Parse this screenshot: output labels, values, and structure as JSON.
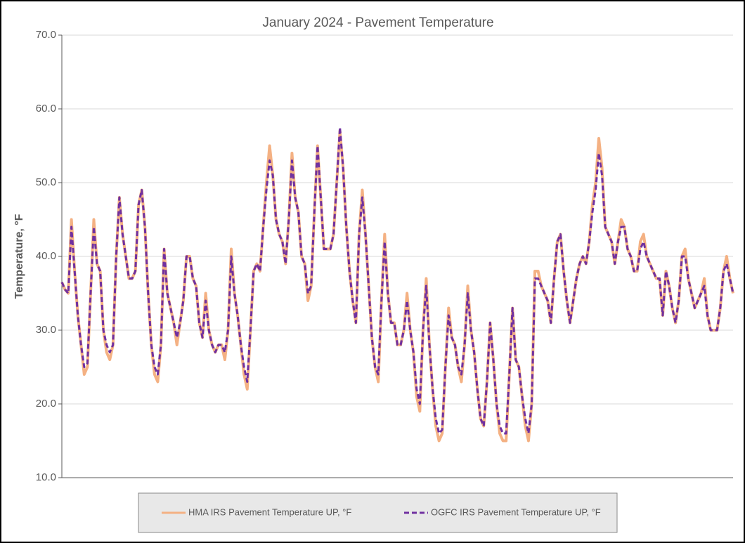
{
  "chart_data": {
    "type": "line",
    "title": "January 2024 - Pavement Temperature",
    "ylabel": "Temperature, °F",
    "ylim": [
      10,
      70
    ],
    "yticks": [
      {
        "value": 10,
        "label": "10.0"
      },
      {
        "value": 20,
        "label": "20.0"
      },
      {
        "value": 30,
        "label": "30.0"
      },
      {
        "value": 40,
        "label": "40.0"
      },
      {
        "value": 50,
        "label": "50.0"
      },
      {
        "value": 60,
        "label": "60.0"
      },
      {
        "value": 70,
        "label": "70.0"
      }
    ],
    "grid": true,
    "legend": "bottom",
    "series": [
      {
        "name": "HMA IRS  Pavement Temperature UP, °F",
        "color": "#f4b183",
        "dash": false,
        "values": [
          36.5,
          35.5,
          35,
          45,
          38,
          32,
          28,
          24,
          25,
          35,
          45,
          39,
          38,
          30,
          27,
          26,
          28,
          40,
          48,
          43,
          40,
          37,
          37,
          38,
          47,
          49,
          44,
          35,
          28,
          24,
          23,
          28,
          41,
          35,
          33,
          31,
          28,
          31,
          34,
          40,
          40,
          37,
          36,
          31,
          29,
          35,
          30,
          28,
          27,
          28,
          28,
          26,
          30,
          41,
          35,
          32,
          28,
          24,
          22,
          30,
          38,
          39,
          38,
          44,
          50,
          55,
          51,
          45,
          43,
          42,
          39,
          45,
          54,
          48,
          46,
          40,
          39,
          34,
          36,
          46,
          55,
          48,
          41,
          41,
          41,
          43,
          50,
          57,
          52,
          44,
          38,
          34,
          31,
          43,
          49,
          43,
          36,
          29,
          25,
          23,
          34,
          43,
          35,
          31,
          31,
          28,
          28,
          30,
          35,
          30,
          27,
          21,
          19,
          30,
          37,
          28,
          22,
          17,
          15,
          16,
          25,
          33,
          29,
          28,
          25,
          23,
          28,
          36,
          30,
          27,
          22,
          18,
          17,
          23,
          31,
          26,
          20,
          16,
          15,
          15,
          24,
          33,
          26,
          25,
          21,
          17,
          15,
          20,
          38,
          38,
          36,
          35,
          34,
          31,
          37,
          42,
          43,
          38,
          34,
          31,
          34,
          37,
          39,
          40,
          39,
          42,
          47,
          50,
          56,
          52,
          44,
          43,
          42,
          39,
          42,
          45,
          44,
          41,
          40,
          38,
          38,
          42,
          43,
          40,
          39,
          38,
          37,
          37,
          32,
          38,
          36,
          33,
          31,
          34,
          40,
          41,
          37,
          35,
          33,
          34,
          35,
          37,
          32,
          30,
          30,
          30,
          33,
          38,
          40,
          37,
          35
        ]
      },
      {
        "name": "OGFC IRS  Pavement Temperature UP, °F",
        "color": "#7030a0",
        "dash": true,
        "values": [
          36.5,
          35.5,
          35,
          44,
          38,
          32,
          28,
          25,
          25.5,
          35,
          44,
          39,
          38,
          30,
          28,
          27,
          28,
          40,
          48,
          43,
          40,
          37,
          37,
          38,
          47,
          49,
          44,
          35,
          28,
          25,
          24,
          28,
          41,
          35,
          33,
          31,
          29,
          31,
          34,
          40,
          40,
          37,
          36,
          31,
          29,
          34,
          30,
          28,
          27,
          28,
          28,
          27,
          30,
          40,
          35,
          32,
          28,
          25,
          23,
          30,
          38,
          39,
          38,
          44,
          49,
          53,
          51,
          45,
          43,
          42,
          39,
          45,
          53,
          48,
          46,
          40,
          39,
          35,
          36,
          46,
          55,
          48,
          41,
          41,
          41,
          43,
          50,
          57.5,
          52,
          44,
          38,
          34,
          31,
          43,
          48,
          43,
          36,
          29,
          25,
          24,
          34,
          42,
          35,
          31,
          31,
          28,
          28,
          30,
          34,
          30,
          27,
          22,
          20,
          30,
          36,
          28,
          22,
          18,
          16,
          16.5,
          25,
          32,
          29,
          28,
          25,
          24,
          28,
          35,
          30,
          27,
          22,
          18,
          17,
          23,
          31,
          26,
          20,
          17,
          16,
          16,
          24,
          33,
          26,
          25,
          21,
          18,
          16,
          20,
          37,
          37,
          36,
          35,
          34,
          31,
          37,
          42,
          43,
          38,
          34,
          31,
          34,
          37,
          39,
          40,
          39,
          42,
          46,
          49,
          54,
          51,
          44,
          43,
          42,
          39,
          42,
          44,
          44,
          41,
          40,
          38,
          38,
          41,
          42,
          40,
          39,
          38,
          37,
          37,
          32,
          38,
          36,
          33,
          31,
          34,
          40,
          40,
          37,
          35,
          33,
          34,
          35,
          36,
          32,
          30,
          30,
          30,
          33,
          38,
          39,
          37,
          35
        ]
      }
    ]
  }
}
